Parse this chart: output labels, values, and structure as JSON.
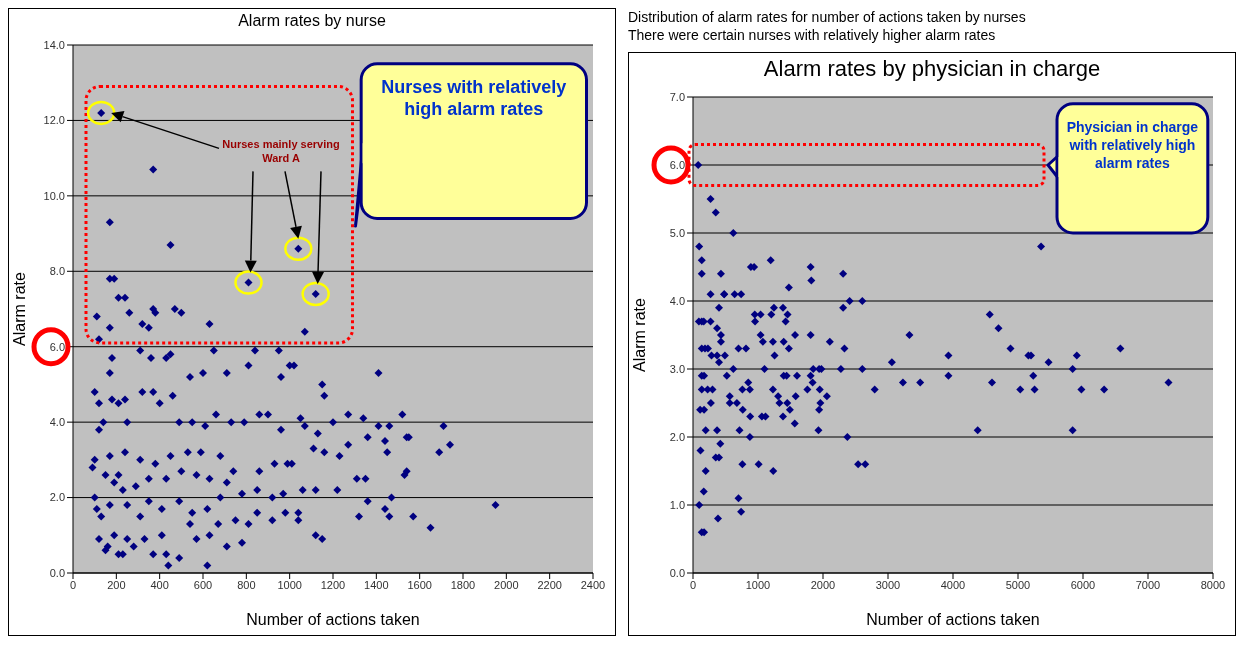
{
  "chart_data": [
    {
      "type": "scatter",
      "title": "Alarm rates by nurse",
      "xlabel": "Number of actions taken",
      "ylabel": "Alarm rate",
      "marker": "diamond",
      "grid": "y",
      "annotations": [
        "Distribution of alarm rates for number of actions taken by nurses",
        "There were certain nurses with relatively higher alarm rates",
        "Nurses mainly serving Ward A",
        "Nurses with relatively high alarm rates"
      ],
      "xlim": [
        0,
        2400
      ],
      "xticks": [
        0,
        200,
        400,
        600,
        800,
        1000,
        1200,
        1400,
        1600,
        1800,
        2000,
        2200,
        2400
      ],
      "ylim": [
        0,
        14
      ],
      "yticks": [
        {
          "value": 0,
          "label": "0.0"
        },
        {
          "value": 2,
          "label": "2.0"
        },
        {
          "value": 4,
          "label": "4.0"
        },
        {
          "value": 6,
          "label": "6.0"
        },
        {
          "value": 8,
          "label": "8.0"
        },
        {
          "value": 10,
          "label": "10.0"
        },
        {
          "value": 12,
          "label": "12.0"
        },
        {
          "value": 14,
          "label": "14.0"
        }
      ],
      "series": [
        {
          "color": "#000080",
          "x": [
            130,
            810,
            1040,
            1120,
            370,
            170,
            450,
            170,
            190,
            210,
            240,
            260,
            110,
            170,
            370,
            380,
            470,
            500,
            630,
            320,
            350,
            1070,
            120,
            1410,
            180,
            170,
            310,
            360,
            430,
            450,
            540,
            600,
            650,
            710,
            810,
            840,
            950,
            960,
            1000,
            1020,
            1150,
            1160,
            100,
            120,
            120,
            140,
            180,
            210,
            240,
            250,
            320,
            370,
            400,
            460,
            490,
            550,
            610,
            660,
            730,
            790,
            860,
            900,
            960,
            1050,
            1070,
            1130,
            1200,
            1270,
            1340,
            1410,
            1460,
            1520,
            1540,
            1550,
            1710,
            1740,
            1690,
            1440,
            1450,
            1360,
            1270,
            1230,
            1160,
            1110,
            1010,
            990,
            930,
            860,
            740,
            680,
            590,
            530,
            450,
            380,
            310,
            240,
            170,
            100,
            90,
            150,
            190,
            230,
            210,
            290,
            350,
            430,
            500,
            570,
            630,
            710,
            780,
            850,
            920,
            970,
            1060,
            1120,
            1220,
            1310,
            1350,
            1360,
            1470,
            1530,
            1540,
            1440,
            1460,
            1570,
            1650,
            1320,
            1040,
            1040,
            980,
            920,
            1120,
            1150,
            850,
            810,
            780,
            710,
            670,
            630,
            620,
            570,
            540,
            490,
            440,
            430,
            410,
            370,
            330,
            310,
            280,
            250,
            230,
            210,
            190,
            160,
            150,
            120,
            130,
            100,
            110,
            170,
            250,
            350,
            410,
            490,
            550,
            620,
            680,
            750,
            1950
          ],
          "values": [
            12.2,
            7.7,
            8.6,
            7.4,
            10.7,
            9.3,
            8.7,
            7.8,
            7.8,
            7.3,
            7.3,
            6.9,
            6.8,
            6.5,
            7.0,
            6.9,
            7.0,
            6.9,
            6.6,
            6.6,
            6.5,
            6.4,
            6.2,
            5.3,
            5.7,
            5.3,
            5.9,
            5.7,
            5.7,
            5.8,
            5.2,
            5.3,
            5.9,
            5.3,
            5.5,
            5.9,
            5.9,
            5.2,
            5.5,
            5.5,
            5.0,
            4.7,
            4.8,
            4.5,
            3.8,
            4.0,
            4.6,
            4.5,
            4.6,
            4.0,
            4.8,
            4.8,
            4.5,
            4.7,
            4.0,
            4.0,
            3.9,
            4.2,
            4.0,
            4.0,
            4.2,
            4.2,
            3.8,
            4.1,
            3.9,
            3.7,
            4.0,
            4.2,
            4.1,
            3.9,
            3.9,
            4.2,
            3.6,
            3.6,
            3.9,
            3.4,
            3.2,
            3.5,
            3.2,
            3.6,
            3.4,
            3.1,
            3.2,
            3.3,
            2.9,
            2.9,
            2.9,
            2.7,
            2.7,
            3.1,
            3.2,
            3.2,
            3.1,
            2.9,
            3.0,
            3.2,
            3.1,
            3.0,
            2.8,
            2.6,
            2.4,
            2.2,
            2.6,
            2.3,
            2.5,
            2.5,
            2.7,
            2.6,
            2.5,
            2.4,
            2.1,
            2.2,
            2.0,
            2.1,
            2.2,
            2.2,
            2.2,
            2.5,
            2.5,
            1.9,
            2.0,
            2.6,
            2.7,
            1.7,
            1.5,
            1.5,
            1.2,
            1.5,
            1.6,
            1.4,
            1.6,
            1.4,
            1.0,
            0.9,
            1.6,
            1.3,
            0.8,
            0.7,
            1.3,
            1.0,
            0.2,
            0.9,
            1.3,
            0.4,
            0.2,
            0.5,
            1.0,
            0.5,
            0.9,
            1.5,
            0.7,
            0.9,
            0.5,
            0.5,
            1.0,
            0.7,
            0.6,
            0.9,
            1.5,
            2.0,
            1.7,
            1.8,
            1.8,
            1.9,
            1.7,
            1.9,
            1.6,
            1.7,
            2.0,
            1.4,
            1.8
          ]
        }
      ]
    },
    {
      "type": "scatter",
      "title": "Alarm rates by physician in charge",
      "xlabel": "Number of actions taken",
      "ylabel": "Alarm rate",
      "marker": "diamond",
      "grid": "y",
      "annotations": [
        "Physician in charge with relatively high alarm rates"
      ],
      "xlim": [
        0,
        8000
      ],
      "xticks": [
        0,
        1000,
        2000,
        3000,
        4000,
        5000,
        6000,
        7000,
        8000
      ],
      "ylim": [
        0,
        7
      ],
      "yticks": [
        {
          "value": 0,
          "label": "0.0"
        },
        {
          "value": 1,
          "label": "1.0"
        },
        {
          "value": 2,
          "label": "2.0"
        },
        {
          "value": 3,
          "label": "3.0"
        },
        {
          "value": 4,
          "label": "4.0"
        },
        {
          "value": 5,
          "label": "5.0"
        },
        {
          "value": 6,
          "label": "6.0"
        },
        {
          "value": 7,
          "label": "7.0"
        }
      ],
      "series": [
        {
          "color": "#000080",
          "x": [
            80,
            270,
            350,
            620,
            95,
            135,
            135,
            430,
            270,
            400,
            480,
            480,
            640,
            740,
            90,
            135,
            165,
            270,
            370,
            430,
            430,
            135,
            185,
            230,
            285,
            370,
            400,
            490,
            135,
            170,
            110,
            170,
            195,
            135,
            225,
            275,
            300,
            370,
            420,
            400,
            350,
            115,
            195,
            165,
            95,
            135,
            170,
            385,
            520,
            565,
            565,
            620,
            675,
            700,
            715,
            700,
            740,
            760,
            760,
            765,
            815,
            850,
            875,
            880,
            875,
            890,
            940,
            950,
            955,
            1040,
            1040,
            1075,
            1060,
            1115,
            1010,
            1100,
            1195,
            1205,
            1245,
            1230,
            1255,
            1230,
            1235,
            1310,
            1330,
            1385,
            1395,
            1395,
            1385,
            1425,
            1455,
            1440,
            1450,
            1475,
            1475,
            1490,
            1570,
            1565,
            1580,
            1600,
            1810,
            1820,
            1810,
            1760,
            1810,
            1850,
            1840,
            1940,
            1975,
            1950,
            1940,
            1930,
            1960,
            2060,
            2105,
            2275,
            2310,
            2310,
            2410,
            2330,
            2375,
            2540,
            2650,
            2605,
            2605,
            2795,
            3060,
            3230,
            3330,
            3495,
            3930,
            3930,
            4380,
            4565,
            4600,
            4700,
            4885,
            5035,
            5160,
            5200,
            5235,
            5255,
            5355,
            5470,
            5840,
            5840,
            5905,
            5975,
            6325,
            6575,
            7315
          ],
          "values": [
            6.0,
            5.5,
            5.3,
            5.0,
            4.8,
            4.6,
            4.4,
            4.4,
            4.1,
            3.9,
            4.1,
            4.1,
            4.1,
            4.1,
            3.7,
            3.7,
            3.7,
            3.7,
            3.6,
            3.5,
            3.4,
            3.3,
            3.3,
            3.3,
            3.2,
            3.2,
            3.1,
            3.2,
            2.9,
            2.9,
            2.4,
            2.4,
            2.1,
            2.7,
            2.7,
            2.5,
            2.7,
            2.1,
            1.9,
            1.7,
            1.7,
            1.8,
            1.5,
            1.2,
            1.0,
            0.6,
            0.6,
            0.8,
            2.9,
            2.6,
            2.5,
            3.0,
            2.5,
            3.3,
            2.1,
            1.1,
            0.9,
            1.6,
            2.7,
            2.4,
            3.3,
            2.8,
            2.7,
            2.3,
            2.0,
            4.5,
            4.5,
            3.8,
            3.7,
            3.8,
            3.5,
            3.4,
            2.3,
            2.3,
            1.6,
            3.0,
            4.6,
            3.8,
            3.9,
            3.4,
            3.2,
            2.7,
            1.5,
            2.6,
            2.5,
            3.9,
            3.4,
            2.9,
            2.3,
            3.7,
            3.8,
            2.9,
            2.5,
            4.2,
            3.3,
            2.4,
            3.5,
            2.2,
            2.6,
            2.9,
            4.5,
            4.3,
            3.5,
            2.7,
            2.9,
            3.0,
            2.8,
            3.0,
            3.0,
            2.7,
            2.4,
            2.1,
            2.5,
            2.6,
            3.4,
            3.0,
            4.4,
            3.9,
            4.0,
            3.3,
            2.0,
            1.6,
            1.6,
            4.0,
            3.0,
            2.7,
            3.1,
            2.8,
            3.5,
            2.8,
            3.2,
            2.9,
            2.1,
            3.8,
            2.8,
            3.6,
            3.3,
            2.7,
            3.2,
            3.2,
            2.9,
            2.7,
            4.8,
            3.1,
            3.0,
            2.1,
            3.2,
            2.7,
            2.7,
            3.3,
            2.8
          ]
        }
      ]
    }
  ]
}
